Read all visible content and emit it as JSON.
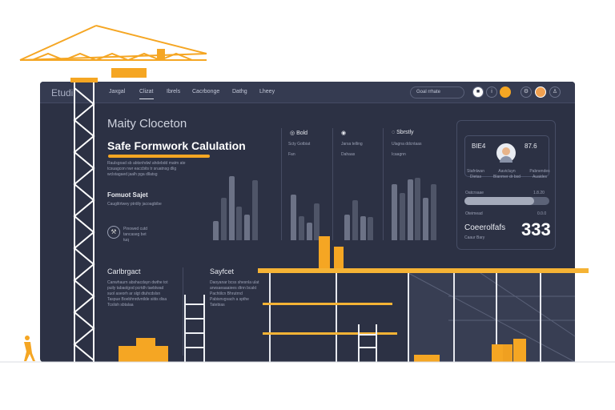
{
  "header": {
    "brand": "Etudi",
    "nav": [
      "Jaxgal",
      "Clizat",
      "Ibrels",
      "Cacrbonge",
      "Dathg",
      "Lheey"
    ],
    "active_nav": 1,
    "search_placeholder": "Goal rrhate",
    "icons": [
      "bookmark-icon",
      "info-icon",
      "chat-icon",
      "settings-icon",
      "avatar",
      "user-icon"
    ]
  },
  "main": {
    "heading": "Maity Cloceton",
    "title": "Safe Formwork Calulation",
    "desc": [
      "Raulsgoad sb abtsnhdwl ahdebdd matm ate",
      "tcsuagcon nwr eaccbits tr sruatnsg dlig",
      "wclstagaed jaalh pga dllatsg"
    ],
    "section": "Fomuot Sajet",
    "section_desc": "Cauglitrtwey ptrdily jacoagbibe",
    "badge_label": "Pinowed cutd tancaseg bet tuq"
  },
  "stats": [
    {
      "icon": "gauge-icon",
      "label": "Bold",
      "sub": "Scty Gotbiat",
      "value": "Fan"
    },
    {
      "icon": "alert-icon",
      "label": "",
      "sub": "Jarsa telling",
      "value": "Dahaas"
    },
    {
      "icon": "refresh-icon",
      "label": "Sbrstly",
      "sub": "Ulagna ddcntaas",
      "value": "Icaagnn"
    }
  ],
  "chart_data": [
    {
      "type": "bar",
      "values": [
        30,
        66,
        100,
        53,
        40,
        94
      ]
    },
    {
      "type": "bar",
      "values": [
        71,
        38,
        28,
        58
      ]
    },
    {
      "type": "bar",
      "values": [
        40,
        63,
        38,
        36
      ]
    },
    {
      "type": "bar",
      "values": [
        88,
        74,
        95,
        98,
        66,
        88
      ]
    }
  ],
  "card": {
    "left_value": "BIE4",
    "right_value": "87.6",
    "left_caption": "Stafnlwan Dietas",
    "center_caption": "Aavicluyn Blanmer dr bsd",
    "right_caption": "Pabnendes Auaides",
    "row1_label": "Oatcrsaae",
    "row1_value": "1.8.20",
    "progress": 0.82,
    "row2_label": "Oteimead",
    "row2_value": "0.0.0",
    "big_label": "Coeerolfafs",
    "big_sub": "Caaur Bary",
    "big_value": "333"
  },
  "bottom": {
    "left_title": "Carlbrgact",
    "left_text": [
      "Canwhaurn abshacdayn dwthe tot",
      "puily tabaolgod pcrtdh taeblwad",
      "suol aseorh ar slgt dtuhcdslsn",
      "Taspue Boebhnrdvntlde siitis disa",
      "Tcslish sbtalaa"
    ],
    "right_title": "Sayfcet",
    "right_text": [
      "Daoyanar bcss shesnla ulat",
      "arwsaeaaaiees dtnn bcakt",
      "Pachtilcn Bhrutrnd",
      "Pabisnvgvach a spthe",
      "Tatebias"
    ]
  },
  "colors": {
    "accent": "#f5a623",
    "panel": "#2c3144",
    "header": "#353b51"
  }
}
